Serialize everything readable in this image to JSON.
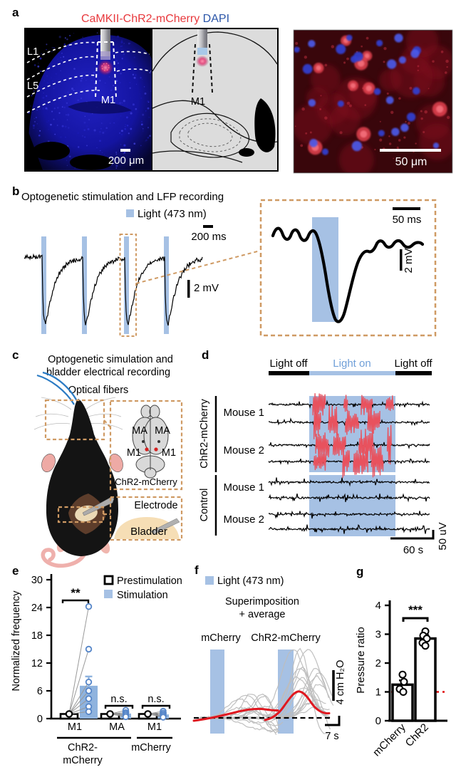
{
  "colors": {
    "light_blue": "#a6c1e4",
    "bar_blue": "#8fb3de",
    "point_blue": "#5585c8",
    "lighton_text_blue": "#6f9fd8",
    "burst_red": "#e8525e",
    "avg_red": "#e01820",
    "ref_dash_red": "#e01010",
    "orange_dash": "#cf9a63",
    "title_red": "#e8393d",
    "title_blue": "#2b55a8",
    "dapi_blue": "#1a1ab8",
    "gray_trace": "#bdbdbd"
  },
  "panel_a": {
    "label": "a",
    "title_red": "CaMKII-ChR2-mCherry",
    "title_blue": "DAPI",
    "layer1": "L1",
    "layer5": "L5",
    "m1_left": "M1",
    "m1_atlas": "M1",
    "scale_left": "200 μm",
    "scale_right": "50 μm"
  },
  "panel_b": {
    "label": "b",
    "title": "Optogenetic stimulation and LFP recording",
    "legend": "Light (473 nm)",
    "scale_time": "200 ms",
    "scale_volt": "2 mV",
    "inset_scale_time": "50 ms",
    "inset_scale_volt": "2 mV",
    "n_light_pulses": 4
  },
  "panel_c": {
    "label": "c",
    "title_line1": "Optogenetic simulation and",
    "title_line2": "bladder electrical recording",
    "fibers": "Optical fibers",
    "ma_left": "MA",
    "ma_right": "MA",
    "m1_left": "M1",
    "m1_right": "M1",
    "brain_caption": "ChR2-mCherry",
    "electrode": "Electrode",
    "bladder": "Bladder"
  },
  "panel_d": {
    "label": "d",
    "light_off_1": "Light off",
    "light_on": "Light on",
    "light_off_2": "Light off",
    "group1": "ChR2-mCherry",
    "group2": "Control",
    "group1_mouse1": "Mouse 1",
    "group1_mouse2": "Mouse 2",
    "group2_mouse1": "Mouse 1",
    "group2_mouse2": "Mouse 2",
    "scale_time": "60 s",
    "scale_amp": "50 uV"
  },
  "panel_e": {
    "label": "e",
    "legend_prestim": "Prestimulation",
    "legend_stim": "Stimulation"
  },
  "panel_f": {
    "label": "f",
    "legend": "Light (473 nm)",
    "subtitle_line1": "Superimposition",
    "subtitle_line2": "+ average",
    "group_left": "mCherry",
    "group_right": "ChR2-mCherry",
    "scale_pressure": "4 cm H₂O",
    "scale_time": "7 s"
  },
  "panel_g": {
    "label": "g"
  },
  "chart_data": [
    {
      "panel": "e",
      "type": "bar",
      "ylabel": "Normalized frequency",
      "ylim": [
        0,
        30
      ],
      "yticks": [
        0,
        6,
        12,
        18,
        24,
        30
      ],
      "legend": [
        "Prestimulation",
        "Stimulation"
      ],
      "groups": [
        {
          "x_label": "M1",
          "cohort": "ChR2-mCherry",
          "prestim_bar": 1.0,
          "stim_bar": 7.1,
          "stim_err": 2.0,
          "sig": "**",
          "prestim_points": [
            1.0
          ],
          "stim_points": [
            24.2,
            15.0,
            7.9,
            6.0,
            4.3,
            2.6,
            1.5
          ]
        },
        {
          "x_label": "MA",
          "cohort": "ChR2-mCherry",
          "prestim_bar": 1.0,
          "stim_bar": 1.1,
          "stim_err": 0.3,
          "sig": "n.s.",
          "prestim_points": [
            1.0
          ],
          "stim_points": [
            1.8,
            1.3,
            1.0,
            0.7,
            0.4
          ]
        },
        {
          "x_label": "M1",
          "cohort": "mCherry",
          "prestim_bar": 1.0,
          "stim_bar": 0.9,
          "stim_err": 0.3,
          "sig": "n.s.",
          "prestim_points": [
            1.0
          ],
          "stim_points": [
            1.6,
            1.2,
            0.9,
            0.6,
            0.3
          ]
        }
      ],
      "cohort_labels": [
        {
          "text_line1": "ChR2-",
          "text_line2": "mCherry"
        },
        {
          "text_line1": "mCherry",
          "text_line2": ""
        }
      ]
    },
    {
      "panel": "g",
      "type": "bar",
      "ylabel": "Pressure ratio",
      "ylim": [
        0,
        4
      ],
      "yticks": [
        0,
        1,
        2,
        3,
        4
      ],
      "categories": [
        "mCherry",
        "ChR2"
      ],
      "values": [
        1.25,
        2.85
      ],
      "errors": [
        0.15,
        0.12
      ],
      "points": [
        [
          1.6,
          1.35,
          1.1,
          1.0
        ],
        [
          3.1,
          2.95,
          2.85,
          2.7,
          2.6
        ]
      ],
      "sig": "***",
      "reference_line": 1.0
    },
    {
      "panel": "f",
      "type": "line",
      "title": "Superimposition + average",
      "groups": [
        "mCherry",
        "ChR2-mCherry"
      ],
      "description": "Superimposed bladder-pressure traces (gray) with averages (red); blue bar marks 473 nm light pulse; mCherry average stays near baseline, ChR2-mCherry average peaks ~4 cm H2O after light onset",
      "scale_bars": {
        "y": "4 cm H₂O",
        "x": "7 s"
      },
      "light_legend": "Light (473 nm)"
    }
  ]
}
